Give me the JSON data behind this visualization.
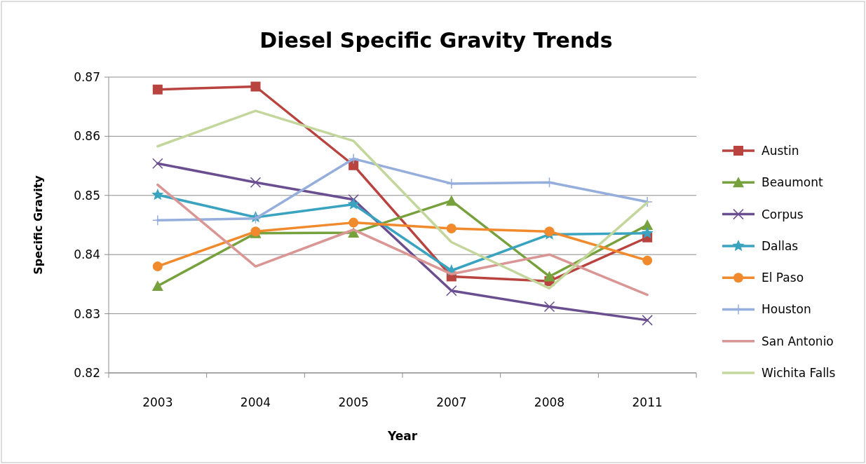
{
  "chart_data": {
    "type": "line",
    "title": "Diesel Specific Gravity Trends",
    "xlabel": "Year",
    "ylabel": "Specific Gravity",
    "categories": [
      "2003",
      "2004",
      "2005",
      "2007",
      "2008",
      "2011"
    ],
    "series": [
      {
        "name": "Austin",
        "color": "#b8433f",
        "marker": "square",
        "values": [
          0.8679,
          0.8684,
          0.8551,
          0.8363,
          0.8355,
          0.8429
        ]
      },
      {
        "name": "Beaumont",
        "color": "#77a13c",
        "marker": "triangle",
        "values": [
          0.8347,
          0.8436,
          0.8437,
          0.8491,
          0.8363,
          0.845
        ]
      },
      {
        "name": "Corpus",
        "color": "#6a4e90",
        "marker": "cross",
        "values": [
          0.8554,
          0.8522,
          0.8493,
          0.8339,
          0.8312,
          0.8289
        ]
      },
      {
        "name": "Dallas",
        "color": "#3aa3bf",
        "marker": "star",
        "values": [
          0.8501,
          0.8463,
          0.8485,
          0.8373,
          0.8434,
          0.8436
        ]
      },
      {
        "name": "El Paso",
        "color": "#f08a2c",
        "marker": "circle",
        "values": [
          0.838,
          0.8439,
          0.8454,
          0.8444,
          0.8439,
          0.839
        ]
      },
      {
        "name": "Houston",
        "color": "#95aedc",
        "marker": "plus",
        "values": [
          0.8458,
          0.8461,
          0.8562,
          0.852,
          0.8522,
          0.8489
        ]
      },
      {
        "name": "San Antonio",
        "color": "#d99694",
        "marker": "none",
        "values": [
          0.8518,
          0.838,
          0.8442,
          0.8367,
          0.84,
          0.8332
        ]
      },
      {
        "name": "Wichita Falls",
        "color": "#c3d69b",
        "marker": "none",
        "values": [
          0.8583,
          0.8643,
          0.8592,
          0.8421,
          0.8343,
          0.8488
        ]
      }
    ],
    "ylim": [
      0.82,
      0.87
    ],
    "yticks": [
      0.82,
      0.83,
      0.84,
      0.85,
      0.86,
      0.87
    ],
    "grid": "y",
    "legend": "right",
    "line_style": "solid"
  }
}
